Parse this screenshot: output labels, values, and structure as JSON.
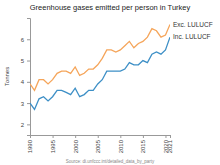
{
  "chart_data": {
    "type": "line",
    "title": "Greenhouse gases emitted per person in Turkey",
    "y_label": "Tonnes",
    "source": "Source: di.unfccc.int/detailed_data_by_party",
    "x": [
      1990,
      1991,
      1992,
      1993,
      1994,
      1995,
      1996,
      1997,
      1998,
      1999,
      2000,
      2001,
      2002,
      2003,
      2004,
      2005,
      2006,
      2007,
      2008,
      2009,
      2010,
      2011,
      2012,
      2013,
      2014,
      2015,
      2016,
      2017,
      2018,
      2019,
      2020,
      2021
    ],
    "series": [
      {
        "name": "Exc. LULUCF",
        "color": "#f5a55a",
        "values": [
          3.9,
          3.6,
          4.1,
          4.1,
          3.9,
          4.1,
          4.4,
          4.5,
          4.5,
          4.4,
          4.7,
          4.3,
          4.4,
          4.6,
          4.6,
          4.8,
          5.1,
          5.5,
          5.5,
          5.4,
          5.5,
          5.7,
          5.9,
          5.6,
          5.8,
          5.9,
          6.1,
          6.5,
          6.4,
          6.1,
          6.2,
          6.7
        ]
      },
      {
        "name": "Inc. LULUCF",
        "color": "#3d8fc6",
        "values": [
          3.0,
          2.7,
          3.2,
          3.3,
          3.1,
          3.3,
          3.6,
          3.6,
          3.5,
          3.4,
          3.7,
          3.3,
          3.4,
          3.6,
          3.6,
          3.9,
          4.1,
          4.5,
          4.5,
          4.5,
          4.5,
          4.6,
          4.9,
          4.8,
          4.8,
          5.0,
          4.9,
          5.3,
          5.4,
          5.3,
          5.5,
          6.1
        ]
      }
    ],
    "xlim": [
      1990,
      2021
    ],
    "xticks": [
      1990,
      1995,
      2000,
      2005,
      2010,
      2015,
      2020,
      2021
    ],
    "ylim": [
      1.5,
      7
    ],
    "yticks": [
      2,
      3,
      4,
      5,
      6
    ],
    "grid": false,
    "legend": "right"
  }
}
